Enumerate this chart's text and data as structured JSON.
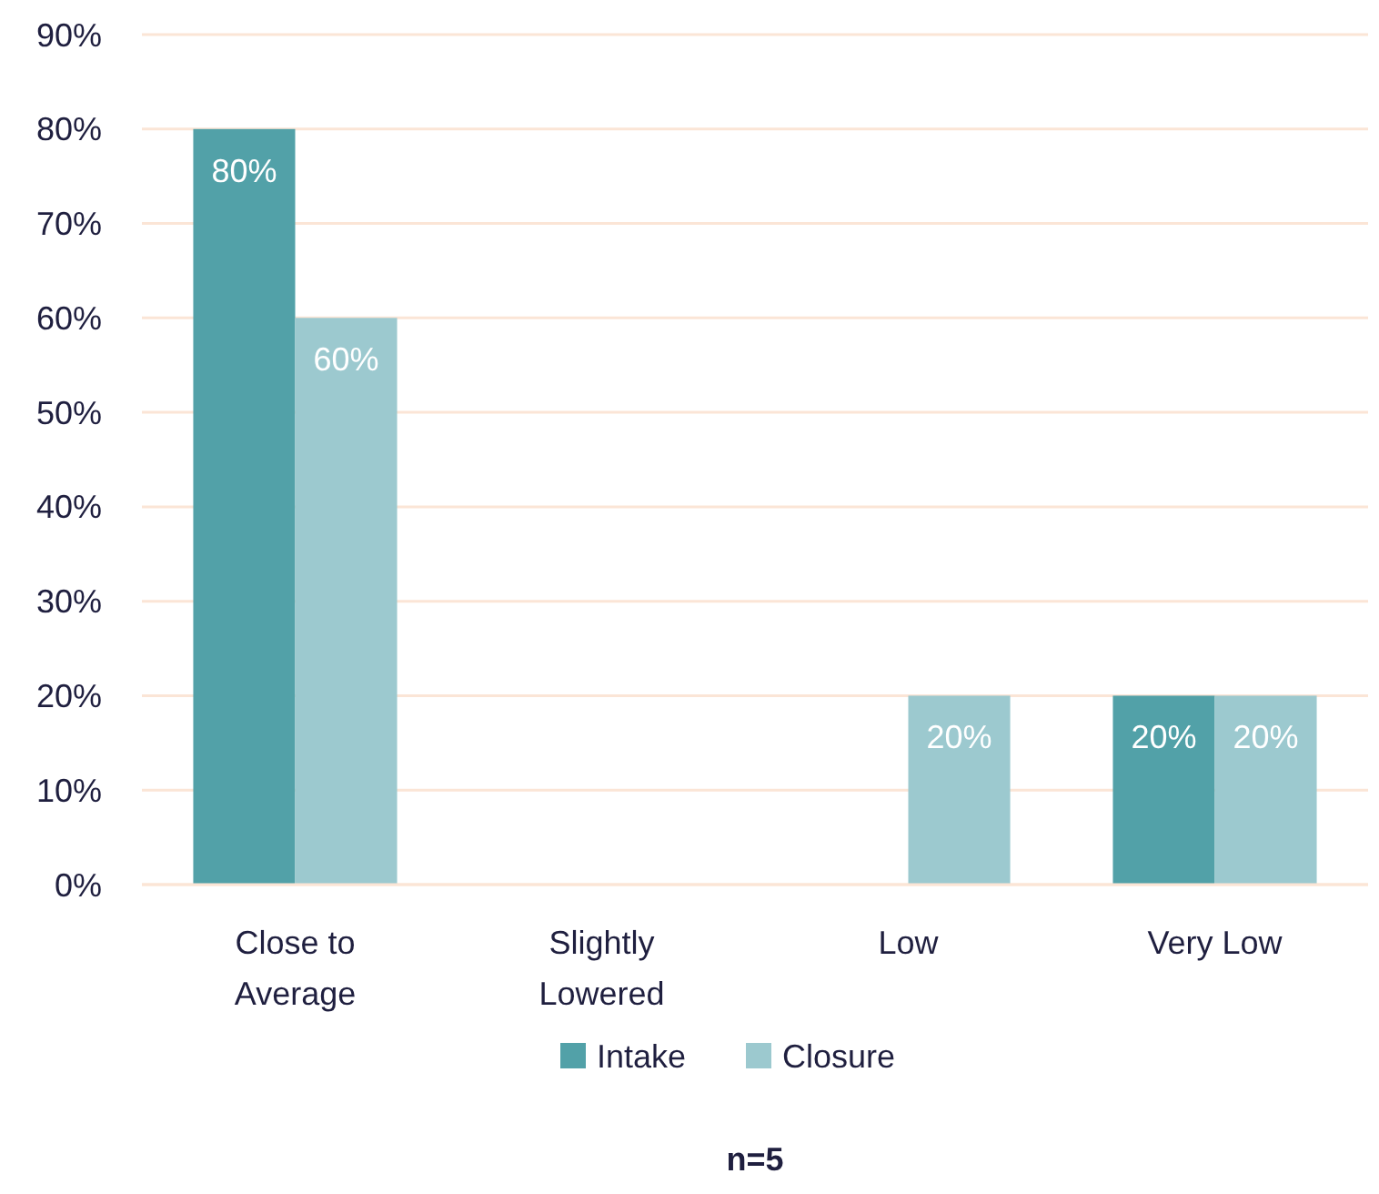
{
  "chart_data": {
    "type": "bar",
    "categories": [
      "Close to Average",
      "Slightly Lowered",
      "Low",
      "Very Low"
    ],
    "series": [
      {
        "name": "Intake",
        "color": "#52a1a8",
        "values": [
          80,
          0,
          0,
          20
        ],
        "value_labels": [
          "80%",
          null,
          null,
          "20%"
        ]
      },
      {
        "name": "Closure",
        "color": "#9cc9cf",
        "values": [
          60,
          0,
          20,
          20
        ],
        "value_labels": [
          "60%",
          null,
          "20%",
          "20%"
        ]
      }
    ],
    "ylim": [
      0,
      90
    ],
    "yticks": [
      {
        "value": 0,
        "label": "0%"
      },
      {
        "value": 10,
        "label": "10%"
      },
      {
        "value": 20,
        "label": "20%"
      },
      {
        "value": 30,
        "label": "30%"
      },
      {
        "value": 40,
        "label": "40%"
      },
      {
        "value": 50,
        "label": "50%"
      },
      {
        "value": 60,
        "label": "60%"
      },
      {
        "value": 70,
        "label": "70%"
      },
      {
        "value": 80,
        "label": "80%"
      },
      {
        "value": 90,
        "label": "90%"
      }
    ],
    "grid": "y",
    "legend": "bottom",
    "annotations": [
      "n=5"
    ]
  }
}
